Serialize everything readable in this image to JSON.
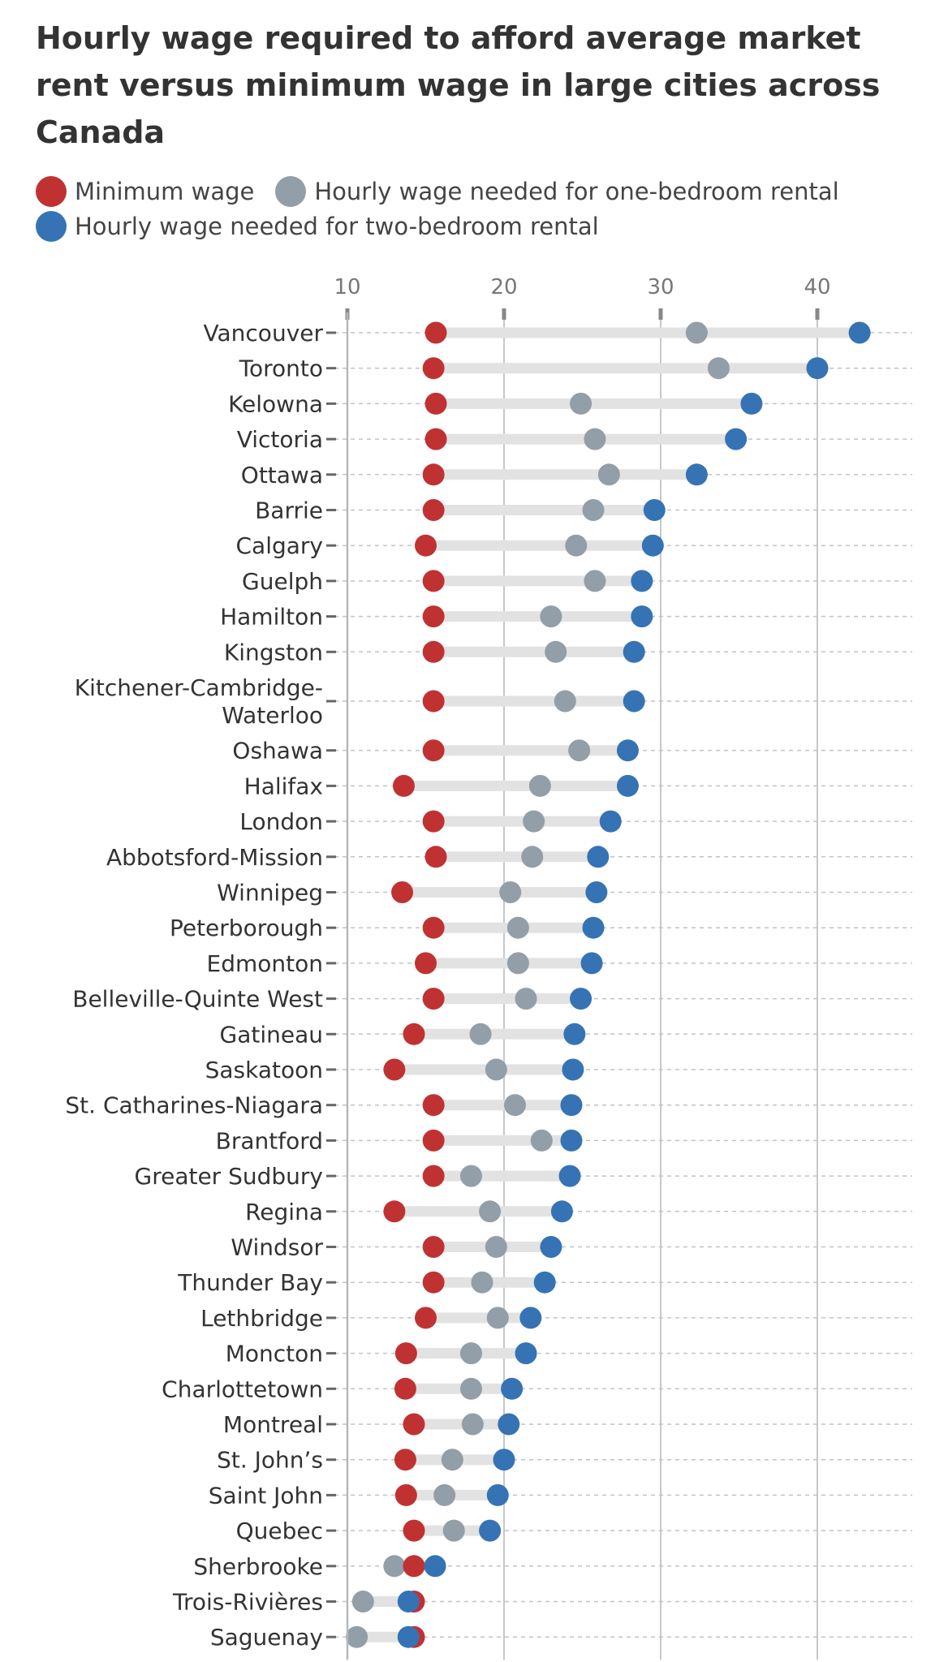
{
  "chart_data": {
    "type": "dot-range",
    "title": "Hourly wage required to afford average market rent versus minimum wage in large cities across Canada",
    "xlabel": "",
    "ylabel": "",
    "xlim": [
      10,
      45
    ],
    "x_ticks": [
      10,
      20,
      30,
      40
    ],
    "gridlines": true,
    "colors": {
      "min": "#c03232",
      "one": "#929ea8",
      "two": "#3673b4",
      "track": "#e2e2e2",
      "axis": "#b4b8be",
      "grid": "#c4c8cc"
    },
    "legend": [
      {
        "key": "min",
        "label": "Minimum wage"
      },
      {
        "key": "one",
        "label": "Hourly wage needed for one-bedroom rental"
      },
      {
        "key": "two",
        "label": "Hourly wage needed for two-bedroom rental"
      }
    ],
    "cities": [
      {
        "name": "Vancouver",
        "min": 15.65,
        "one": 32.3,
        "two": 42.7
      },
      {
        "name": "Toronto",
        "min": 15.5,
        "one": 33.7,
        "two": 40.0
      },
      {
        "name": "Kelowna",
        "min": 15.65,
        "one": 24.9,
        "two": 35.8
      },
      {
        "name": "Victoria",
        "min": 15.65,
        "one": 25.8,
        "two": 34.8
      },
      {
        "name": "Ottawa",
        "min": 15.5,
        "one": 26.7,
        "two": 32.3
      },
      {
        "name": "Barrie",
        "min": 15.5,
        "one": 25.7,
        "two": 29.6
      },
      {
        "name": "Calgary",
        "min": 15.0,
        "one": 24.6,
        "two": 29.5
      },
      {
        "name": "Guelph",
        "min": 15.5,
        "one": 25.8,
        "two": 28.8
      },
      {
        "name": "Hamilton",
        "min": 15.5,
        "one": 23.0,
        "two": 28.8
      },
      {
        "name": "Kingston",
        "min": 15.5,
        "one": 23.3,
        "two": 28.3
      },
      {
        "name": "Kitchener-Cambridge-Waterloo",
        "min": 15.5,
        "one": 23.9,
        "two": 28.3
      },
      {
        "name": "Oshawa",
        "min": 15.5,
        "one": 24.8,
        "two": 27.9
      },
      {
        "name": "Halifax",
        "min": 13.6,
        "one": 22.3,
        "two": 27.9
      },
      {
        "name": "London",
        "min": 15.5,
        "one": 21.9,
        "two": 26.8
      },
      {
        "name": "Abbotsford-Mission",
        "min": 15.65,
        "one": 21.8,
        "two": 26.0
      },
      {
        "name": "Winnipeg",
        "min": 13.5,
        "one": 20.4,
        "two": 25.9
      },
      {
        "name": "Peterborough",
        "min": 15.5,
        "one": 20.9,
        "two": 25.7
      },
      {
        "name": "Edmonton",
        "min": 15.0,
        "one": 20.9,
        "two": 25.6
      },
      {
        "name": "Belleville-Quinte West",
        "min": 15.5,
        "one": 21.4,
        "two": 24.9
      },
      {
        "name": "Gatineau",
        "min": 14.25,
        "one": 18.5,
        "two": 24.5
      },
      {
        "name": "Saskatoon",
        "min": 13.0,
        "one": 19.5,
        "two": 24.4
      },
      {
        "name": "St. Catharines-Niagara",
        "min": 15.5,
        "one": 20.7,
        "two": 24.3
      },
      {
        "name": "Brantford",
        "min": 15.5,
        "one": 22.4,
        "two": 24.3
      },
      {
        "name": "Greater Sudbury",
        "min": 15.5,
        "one": 17.9,
        "two": 24.2
      },
      {
        "name": "Regina",
        "min": 13.0,
        "one": 19.1,
        "two": 23.7
      },
      {
        "name": "Windsor",
        "min": 15.5,
        "one": 19.5,
        "two": 23.0
      },
      {
        "name": "Thunder Bay",
        "min": 15.5,
        "one": 18.6,
        "two": 22.6
      },
      {
        "name": "Lethbridge",
        "min": 15.0,
        "one": 19.6,
        "two": 21.7
      },
      {
        "name": "Moncton",
        "min": 13.75,
        "one": 17.9,
        "two": 21.4
      },
      {
        "name": "Charlottetown",
        "min": 13.7,
        "one": 17.9,
        "two": 20.5
      },
      {
        "name": "Montreal",
        "min": 14.25,
        "one": 18.0,
        "two": 20.3
      },
      {
        "name": "St. John’s",
        "min": 13.7,
        "one": 16.7,
        "two": 20.0
      },
      {
        "name": "Saint John",
        "min": 13.75,
        "one": 16.2,
        "two": 19.6
      },
      {
        "name": "Quebec",
        "min": 14.25,
        "one": 16.8,
        "two": 19.1
      },
      {
        "name": "Sherbrooke",
        "min": 14.25,
        "one": 13.0,
        "two": 15.6
      },
      {
        "name": "Trois-Rivières",
        "min": 14.25,
        "one": 11.0,
        "two": 13.9
      },
      {
        "name": "Saguenay",
        "min": 14.25,
        "one": 10.6,
        "two": 13.9
      }
    ]
  }
}
